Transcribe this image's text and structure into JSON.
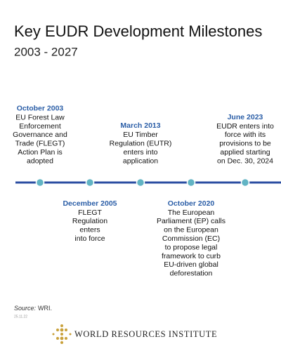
{
  "header": {
    "title": "Key EUDR Development Milestones",
    "subtitle": "2003 - 2027"
  },
  "events": [
    {
      "date": "October 2003",
      "lines": [
        "EU Forest Law",
        "Enforcement",
        "Governance and",
        "Trade (FLEGT)",
        "Action Plan is",
        "adopted"
      ]
    },
    {
      "date": "December 2005",
      "lines": [
        "FLEGT",
        "Regulation",
        "enters",
        "into force"
      ]
    },
    {
      "date": "March 2013",
      "lines": [
        "EU Timber",
        "Regulation (EUTR)",
        "enters into",
        "application"
      ]
    },
    {
      "date": "October 2020",
      "lines": [
        "The European",
        "Parliament (EP) calls",
        "on the European",
        "Commission (EC)",
        "to propose legal",
        "framework to curb",
        "EU-driven global",
        "deforestation"
      ]
    },
    {
      "date": "June 2023",
      "lines": [
        "EUDR enters into",
        "force with its",
        "provisions to be",
        "applied starting",
        "on Dec. 30, 2024"
      ]
    }
  ],
  "footer": {
    "source_label": "Source:",
    "source_text": "WRI.",
    "date_code": "25.11.22",
    "org": "WORLD RESOURCES INSTITUTE"
  }
}
